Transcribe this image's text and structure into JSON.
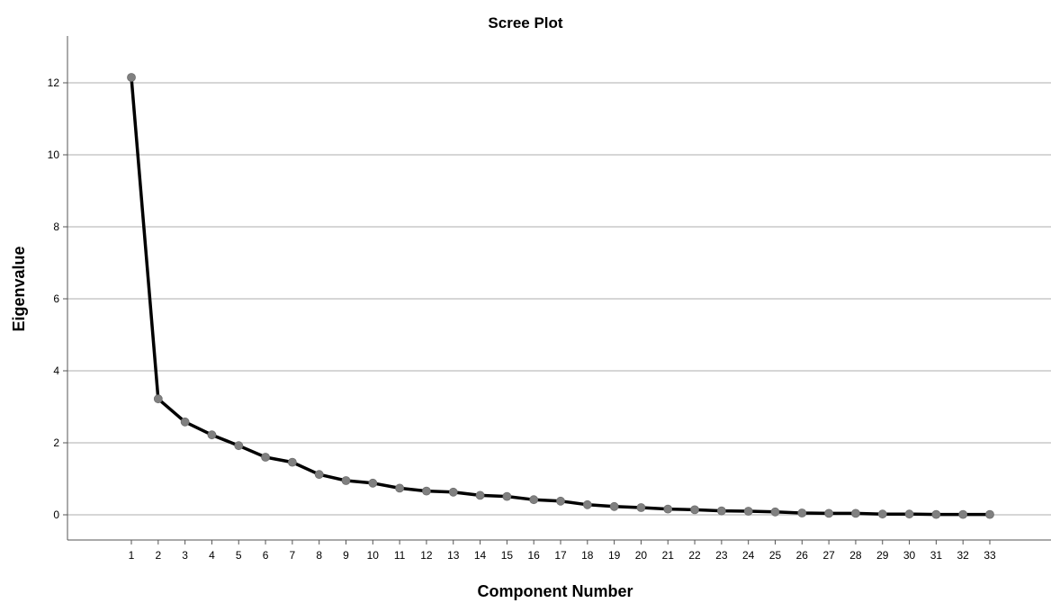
{
  "chart_data": {
    "type": "line",
    "title": "Scree Plot",
    "xlabel": "Component Number",
    "ylabel": "Eigenvalue",
    "x": [
      1,
      2,
      3,
      4,
      5,
      6,
      7,
      8,
      9,
      10,
      11,
      12,
      13,
      14,
      15,
      16,
      17,
      18,
      19,
      20,
      21,
      22,
      23,
      24,
      25,
      26,
      27,
      28,
      29,
      30,
      31,
      32,
      33
    ],
    "series": [
      {
        "values": [
          12.15,
          3.22,
          2.58,
          2.22,
          1.92,
          1.6,
          1.46,
          1.12,
          0.95,
          0.88,
          0.74,
          0.66,
          0.63,
          0.54,
          0.51,
          0.42,
          0.38,
          0.28,
          0.23,
          0.2,
          0.16,
          0.14,
          0.11,
          0.1,
          0.08,
          0.05,
          0.04,
          0.04,
          0.02,
          0.02,
          0.01,
          0.01,
          0.01
        ]
      }
    ],
    "xticks": [
      "1",
      "2",
      "3",
      "4",
      "5",
      "6",
      "7",
      "8",
      "9",
      "10",
      "11",
      "12",
      "13",
      "14",
      "15",
      "16",
      "17",
      "18",
      "19",
      "20",
      "21",
      "22",
      "23",
      "24",
      "25",
      "26",
      "27",
      "28",
      "29",
      "30",
      "31",
      "32",
      "33"
    ],
    "yticks": [
      0,
      2,
      4,
      6,
      8,
      10,
      12
    ],
    "ylim": [
      -0.7,
      13.3
    ],
    "grid": "horizontal",
    "colors": {
      "line": "#000000",
      "marker": "#808080",
      "grid": "#c8c8c8",
      "axis": "#555555",
      "background": "#ffffff"
    }
  }
}
